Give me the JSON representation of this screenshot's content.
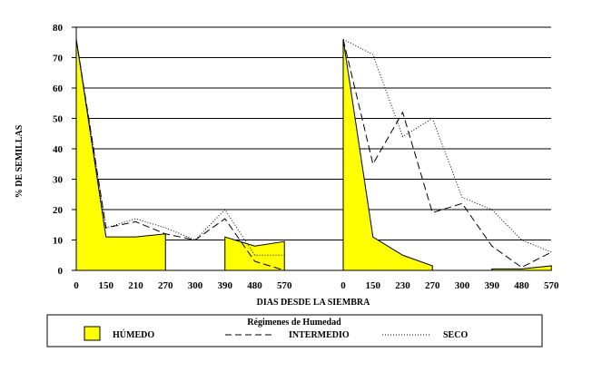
{
  "chart_data": {
    "type": "area",
    "xlabel": "DIAS DESDE LA SIEMBRA",
    "ylabel": "% DE SEMILLAS",
    "ylim": [
      0,
      80
    ],
    "yticks": [
      0,
      10,
      20,
      30,
      40,
      50,
      60,
      70,
      80
    ],
    "grid": true,
    "legend": {
      "title": "Régimenes de Humedad",
      "position": "bottom",
      "labels": [
        "HÚMEDO",
        "INTERMEDIO",
        "SECO"
      ]
    },
    "colors": {
      "humedo_fill": "#ffff00",
      "line": "#000000",
      "grid": "#000000"
    },
    "panels": [
      {
        "categories": [
          "0",
          "150",
          "210",
          "270",
          "300",
          "390",
          "480",
          "570"
        ],
        "series": [
          {
            "name": "HÚMEDO",
            "style": "filled",
            "values": [
              76,
              11,
              11,
              12,
              null,
              11,
              8,
              9.5
            ]
          },
          {
            "name": "INTERMEDIO",
            "style": "dashed",
            "values": [
              76,
              14,
              16,
              12,
              10,
              17,
              3,
              0
            ]
          },
          {
            "name": "SECO",
            "style": "dotted",
            "values": [
              76,
              14,
              17,
              14,
              10,
              20,
              5,
              5
            ]
          }
        ]
      },
      {
        "categories": [
          "0",
          "150",
          "230",
          "270",
          "300",
          "390",
          "480",
          "570"
        ],
        "series": [
          {
            "name": "HÚMEDO",
            "style": "filled",
            "values": [
              76,
              11,
              5,
              1.5,
              null,
              0.5,
              0.5,
              1.5
            ]
          },
          {
            "name": "INTERMEDIO",
            "style": "dashed",
            "values": [
              76,
              35,
              52,
              19,
              22,
              8,
              1,
              6
            ]
          },
          {
            "name": "SECO",
            "style": "dotted",
            "values": [
              76,
              71,
              44,
              50,
              24,
              20,
              10,
              6
            ]
          }
        ]
      }
    ]
  }
}
